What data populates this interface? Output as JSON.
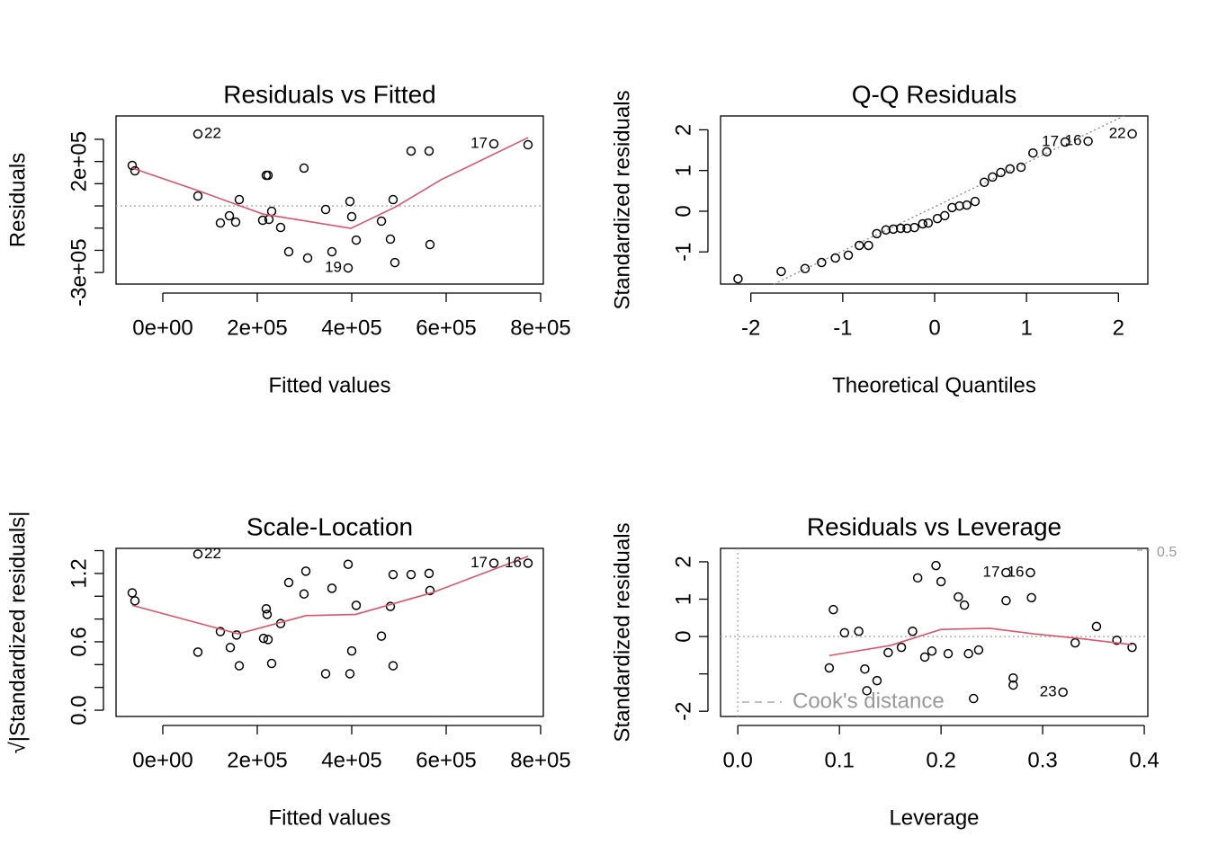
{
  "chart_data": [
    {
      "type": "scatter",
      "title": "Residuals vs Fitted",
      "x_label": "Fitted values",
      "y_label": "Residuals",
      "x": [
        -64800,
        -59000,
        74300,
        74300,
        121900,
        141000,
        154300,
        161900,
        211400,
        219000,
        222900,
        224800,
        230500,
        249500,
        266700,
        299000,
        306700,
        344800,
        358100,
        392400,
        396200,
        400000,
        409500,
        462900,
        481900,
        487600,
        491400,
        525700,
        563800,
        565700,
        701000,
        773300
      ],
      "y": [
        182200,
        157900,
        323900,
        44500,
        -76900,
        -44500,
        -72900,
        28300,
        -64800,
        137700,
        137700,
        -60700,
        -24300,
        -97200,
        -206500,
        170100,
        -234800,
        -16200,
        -206500,
        -279400,
        20200,
        -48600,
        -153900,
        -68800,
        -149800,
        28300,
        -255100,
        247000,
        247000,
        -174100,
        279400,
        275300
      ],
      "smooth": {
        "color": "#DF536B",
        "x": [
          -64800,
          74300,
          211400,
          398100,
          493300,
          588600,
          773300
        ],
        "y": [
          170100,
          68800,
          -36400,
          -101200,
          -4000,
          117400,
          307700
        ]
      },
      "point_labels": [
        {
          "label": "22",
          "point": 2
        },
        {
          "label": "19",
          "point": 19
        },
        {
          "label": "17",
          "point": 30
        }
      ],
      "hline": 0,
      "point_color": "#000000",
      "xlim": [
        -99000,
        805700
      ],
      "ylim": [
        -352000,
        405000
      ],
      "xticks": [
        {
          "value": 0,
          "label": "0e+00"
        },
        {
          "value": 200000,
          "label": "2e+05"
        },
        {
          "value": 400000,
          "label": "4e+05"
        },
        {
          "value": 600000,
          "label": "6e+05"
        },
        {
          "value": 800000,
          "label": "8e+05"
        }
      ],
      "yticks": [
        {
          "value": -300000,
          "label": "-3e+05"
        },
        {
          "value": -200000,
          "label": null
        },
        {
          "value": -100000,
          "label": null
        },
        {
          "value": 0,
          "label": null
        },
        {
          "value": 100000,
          "label": null
        },
        {
          "value": 200000,
          "label": "2e+05"
        },
        {
          "value": 300000,
          "label": null
        }
      ]
    },
    {
      "type": "scatter",
      "title": "Q-Q Residuals",
      "x_label": "Theoretical Quantiles",
      "y_label": "Standardized residuals",
      "x": [
        -2.14,
        -1.67,
        -1.41,
        -1.23,
        -1.08,
        -0.94,
        -0.82,
        -0.72,
        -0.63,
        -0.53,
        -0.45,
        -0.37,
        -0.3,
        -0.22,
        -0.13,
        -0.07,
        0.03,
        0.11,
        0.19,
        0.27,
        0.35,
        0.44,
        0.54,
        0.63,
        0.72,
        0.82,
        0.94,
        1.07,
        1.22,
        1.42,
        1.67,
        2.15
      ],
      "y": [
        -1.66,
        -1.48,
        -1.41,
        -1.26,
        -1.15,
        -1.08,
        -0.84,
        -0.84,
        -0.55,
        -0.46,
        -0.44,
        -0.42,
        -0.42,
        -0.4,
        -0.31,
        -0.29,
        -0.18,
        -0.11,
        0.09,
        0.13,
        0.15,
        0.24,
        0.71,
        0.84,
        0.95,
        1.04,
        1.08,
        1.43,
        1.46,
        1.7,
        1.72,
        1.9
      ],
      "qq_line": {
        "x": [
          -1.75,
          2.06
        ],
        "y": [
          -1.79,
          2.34
        ]
      },
      "point_labels": [
        {
          "label": "17",
          "point": 29
        },
        {
          "label": "16",
          "point": 30
        },
        {
          "label": "22",
          "point": 31
        }
      ],
      "point_color": "#000000",
      "xlim": [
        -2.33,
        2.32
      ],
      "ylim": [
        -1.79,
        2.34
      ],
      "xticks": [
        -2,
        -1,
        0,
        1,
        2
      ],
      "yticks": [
        -1,
        0,
        1,
        2
      ]
    },
    {
      "type": "scatter",
      "title": "Scale-Location",
      "x_label": "Fitted values",
      "y_label": "√|Standardized residuals|",
      "x": [
        -64800,
        -59000,
        74300,
        74300,
        121900,
        142900,
        156200,
        161900,
        213300,
        219000,
        220900,
        222900,
        230500,
        249500,
        266700,
        299000,
        302900,
        344800,
        358100,
        392400,
        396200,
        400000,
        409500,
        462900,
        481900,
        487600,
        487600,
        525700,
        563800,
        565700,
        701000,
        773300
      ],
      "y": [
        1.03,
        0.96,
        1.37,
        0.51,
        0.69,
        0.55,
        0.66,
        0.39,
        0.63,
        0.89,
        0.84,
        0.62,
        0.41,
        0.76,
        1.12,
        1.02,
        1.22,
        0.32,
        1.07,
        1.28,
        0.32,
        0.52,
        0.92,
        0.65,
        0.91,
        1.19,
        0.39,
        1.19,
        1.2,
        1.05,
        1.29,
        1.29
      ],
      "smooth": {
        "color": "#DF536B",
        "x": [
          -64800,
          160000,
          302900,
          407600,
          569500,
          773300
        ],
        "y": [
          0.92,
          0.67,
          0.83,
          0.84,
          1.03,
          1.35
        ]
      },
      "point_labels": [
        {
          "label": "22",
          "point": 2
        },
        {
          "label": "17",
          "point": 30
        },
        {
          "label": "16",
          "point": 31
        }
      ],
      "point_color": "#000000",
      "xlim": [
        -99000,
        805700
      ],
      "ylim": [
        -0.055,
        1.42
      ],
      "xticks": [
        {
          "value": 0,
          "label": "0e+00"
        },
        {
          "value": 200000,
          "label": "2e+05"
        },
        {
          "value": 400000,
          "label": "4e+05"
        },
        {
          "value": 600000,
          "label": "6e+05"
        },
        {
          "value": 800000,
          "label": "8e+05"
        }
      ],
      "yticks": [
        {
          "value": 0,
          "label": "0.0"
        },
        {
          "value": 0.2,
          "label": null
        },
        {
          "value": 0.4,
          "label": null
        },
        0.6,
        {
          "value": 0.8,
          "label": null
        },
        {
          "value": 1.0,
          "label": null
        },
        1.2,
        {
          "value": 1.4,
          "label": null
        }
      ]
    },
    {
      "type": "scatter",
      "title": "Residuals vs Leverage",
      "x_label": "Leverage",
      "y_label": "Standardized residuals",
      "x": [
        0.09,
        0.094,
        0.105,
        0.119,
        0.125,
        0.127,
        0.137,
        0.148,
        0.161,
        0.172,
        0.177,
        0.184,
        0.191,
        0.195,
        0.2,
        0.207,
        0.217,
        0.223,
        0.227,
        0.232,
        0.237,
        0.264,
        0.264,
        0.271,
        0.271,
        0.288,
        0.289,
        0.32,
        0.332,
        0.353,
        0.373,
        0.388
      ],
      "y": [
        -0.84,
        0.72,
        0.1,
        0.14,
        -0.87,
        -1.45,
        -1.18,
        -0.43,
        -0.29,
        0.14,
        1.57,
        -0.55,
        -0.39,
        1.9,
        1.47,
        -0.46,
        1.06,
        0.84,
        -0.46,
        -1.66,
        -0.36,
        1.71,
        0.96,
        -1.11,
        -1.3,
        1.71,
        1.04,
        -1.49,
        -0.17,
        0.27,
        -0.1,
        -0.29
      ],
      "smooth": {
        "color": "#DF536B",
        "x": [
          0.09,
          0.15,
          0.186,
          0.2,
          0.248,
          0.292,
          0.336,
          0.388
        ],
        "y": [
          -0.51,
          -0.24,
          0.07,
          0.19,
          0.22,
          0.07,
          -0.05,
          -0.22
        ]
      },
      "point_labels": [
        {
          "label": "17",
          "point": 21
        },
        {
          "label": "16",
          "point": 25
        },
        {
          "label": "23",
          "point": 27
        }
      ],
      "hline": 0,
      "vline": 0,
      "point_color": "#000000",
      "cooks_legend": "Cook's distance",
      "cooks_levels": [
        {
          "value": 0.5,
          "label": "0.5"
        }
      ],
      "xlim": [
        -0.017,
        0.4035
      ],
      "ylim": [
        -2.14,
        2.36
      ],
      "xticks": [
        {
          "value": 0,
          "label": "0.0"
        },
        0.1,
        0.2,
        0.3,
        0.4
      ],
      "yticks": [
        -2,
        {
          "value": -1,
          "label": null
        },
        0,
        1,
        2
      ]
    }
  ]
}
